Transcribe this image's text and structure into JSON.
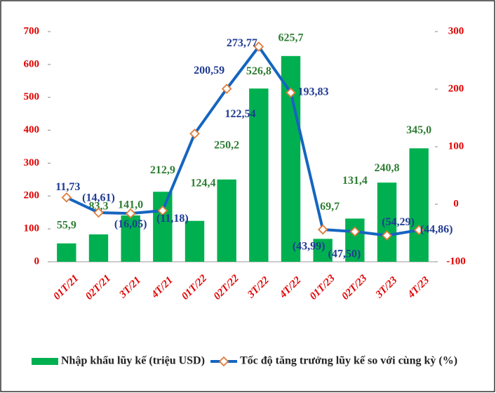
{
  "chart_data": {
    "type": "bar_line",
    "categories": [
      "01T/21",
      "02T/21",
      "3T/21",
      "4T/21",
      "01T/22",
      "02T/22",
      "3T/22",
      "4T/22",
      "01T/23",
      "02T/23",
      "3T/23",
      "4T/23"
    ],
    "series": [
      {
        "name": "Nhập khẩu lũy kế (triệu USD)",
        "type": "bar",
        "color": "#00b050",
        "values": [
          55.9,
          83.3,
          141.0,
          212.9,
          124.4,
          250.2,
          526.8,
          625.7,
          69.7,
          131.4,
          240.8,
          345.0
        ],
        "value_labels": [
          "55,9",
          "83,3",
          "141,0",
          "212,9",
          "124,4",
          "250,2",
          "526,8",
          "625,7",
          "69,7",
          "131,4",
          "240,8",
          "345,0"
        ]
      },
      {
        "name": "Tốc độ tăng trưởng lũy kế so với cùng kỳ (%)",
        "type": "line",
        "axis": "y2",
        "color": "#1565c0",
        "marker_color": "#e07b39",
        "values": [
          11.73,
          -14.61,
          -16.05,
          -11.18,
          122.54,
          200.59,
          273.77,
          193.83,
          -43.99,
          -47.5,
          -54.29,
          -44.86
        ],
        "value_labels": [
          "11,73",
          "(14,61)",
          "(16,05)",
          "(11,18)",
          "122,54",
          "200,59",
          "273,77",
          "193,83",
          "(43,99)",
          "(47,50)",
          "(54,29)",
          "(44,86)"
        ]
      }
    ],
    "ylim": [
      0,
      700
    ],
    "yticks": [
      0,
      100,
      200,
      300,
      400,
      500,
      600,
      700
    ],
    "y2lim": [
      -100,
      300
    ],
    "y2ticks": [
      -100,
      0,
      100,
      200,
      300
    ],
    "legend": "bottom"
  }
}
